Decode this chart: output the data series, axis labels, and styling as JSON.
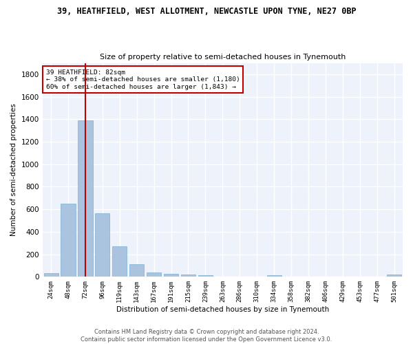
{
  "title_line1": "39, HEATHFIELD, WEST ALLOTMENT, NEWCASTLE UPON TYNE, NE27 0BP",
  "title_line2": "Size of property relative to semi-detached houses in Tynemouth",
  "xlabel": "Distribution of semi-detached houses by size in Tynemouth",
  "ylabel": "Number of semi-detached properties",
  "categories": [
    "24sqm",
    "48sqm",
    "72sqm",
    "96sqm",
    "119sqm",
    "143sqm",
    "167sqm",
    "191sqm",
    "215sqm",
    "239sqm",
    "263sqm",
    "286sqm",
    "310sqm",
    "334sqm",
    "358sqm",
    "382sqm",
    "406sqm",
    "429sqm",
    "453sqm",
    "477sqm",
    "501sqm"
  ],
  "values": [
    35,
    648,
    1390,
    565,
    268,
    110,
    38,
    28,
    20,
    15,
    0,
    0,
    0,
    13,
    0,
    0,
    0,
    0,
    0,
    0,
    18
  ],
  "bar_color": "#aac4e0",
  "bar_edge_color": "#7aafd4",
  "highlight_color": "#c00000",
  "highlight_index": 2,
  "annotation_text_line1": "39 HEATHFIELD: 82sqm",
  "annotation_text_line2": "← 38% of semi-detached houses are smaller (1,180)",
  "annotation_text_line3": "60% of semi-detached houses are larger (1,843) →",
  "ylim": [
    0,
    1900
  ],
  "yticks": [
    0,
    200,
    400,
    600,
    800,
    1000,
    1200,
    1400,
    1600,
    1800
  ],
  "bg_color": "#eef3fb",
  "grid_color": "#ffffff",
  "footer_line1": "Contains HM Land Registry data © Crown copyright and database right 2024.",
  "footer_line2": "Contains public sector information licensed under the Open Government Licence v3.0."
}
